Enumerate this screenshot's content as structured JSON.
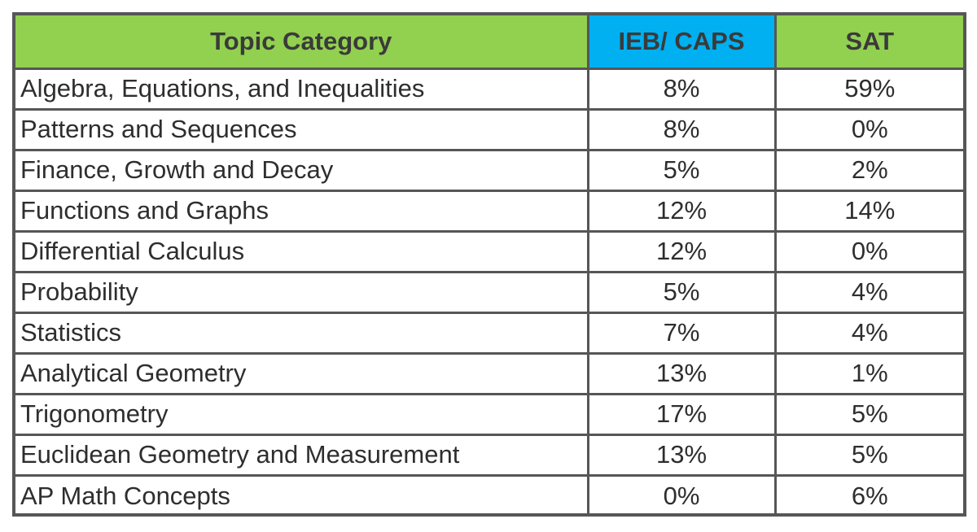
{
  "colors": {
    "header_green": "#92d050",
    "header_blue": "#00b0f0",
    "border": "#565656",
    "text": "#2e2e2e"
  },
  "chart_data": {
    "type": "table",
    "columns": [
      "Topic Category",
      "IEB/ CAPS",
      "SAT"
    ],
    "header_colors": [
      "#92d050",
      "#00b0f0",
      "#92d050"
    ],
    "rows": [
      {
        "topic": "Algebra, Equations, and Inequalities",
        "ieb_caps": "8%",
        "sat": "59%"
      },
      {
        "topic": "Patterns and Sequences",
        "ieb_caps": "8%",
        "sat": "0%"
      },
      {
        "topic": "Finance, Growth and Decay",
        "ieb_caps": "5%",
        "sat": "2%"
      },
      {
        "topic": "Functions and Graphs",
        "ieb_caps": "12%",
        "sat": "14%"
      },
      {
        "topic": "Differential Calculus",
        "ieb_caps": "12%",
        "sat": "0%"
      },
      {
        "topic": "Probability",
        "ieb_caps": "5%",
        "sat": "4%"
      },
      {
        "topic": "Statistics",
        "ieb_caps": "7%",
        "sat": "4%"
      },
      {
        "topic": "Analytical Geometry",
        "ieb_caps": "13%",
        "sat": "1%"
      },
      {
        "topic": "Trigonometry",
        "ieb_caps": "17%",
        "sat": "5%"
      },
      {
        "topic": "Euclidean Geometry and Measurement",
        "ieb_caps": "13%",
        "sat": "5%"
      },
      {
        "topic": "AP Math Concepts",
        "ieb_caps": "0%",
        "sat": "6%"
      }
    ]
  }
}
